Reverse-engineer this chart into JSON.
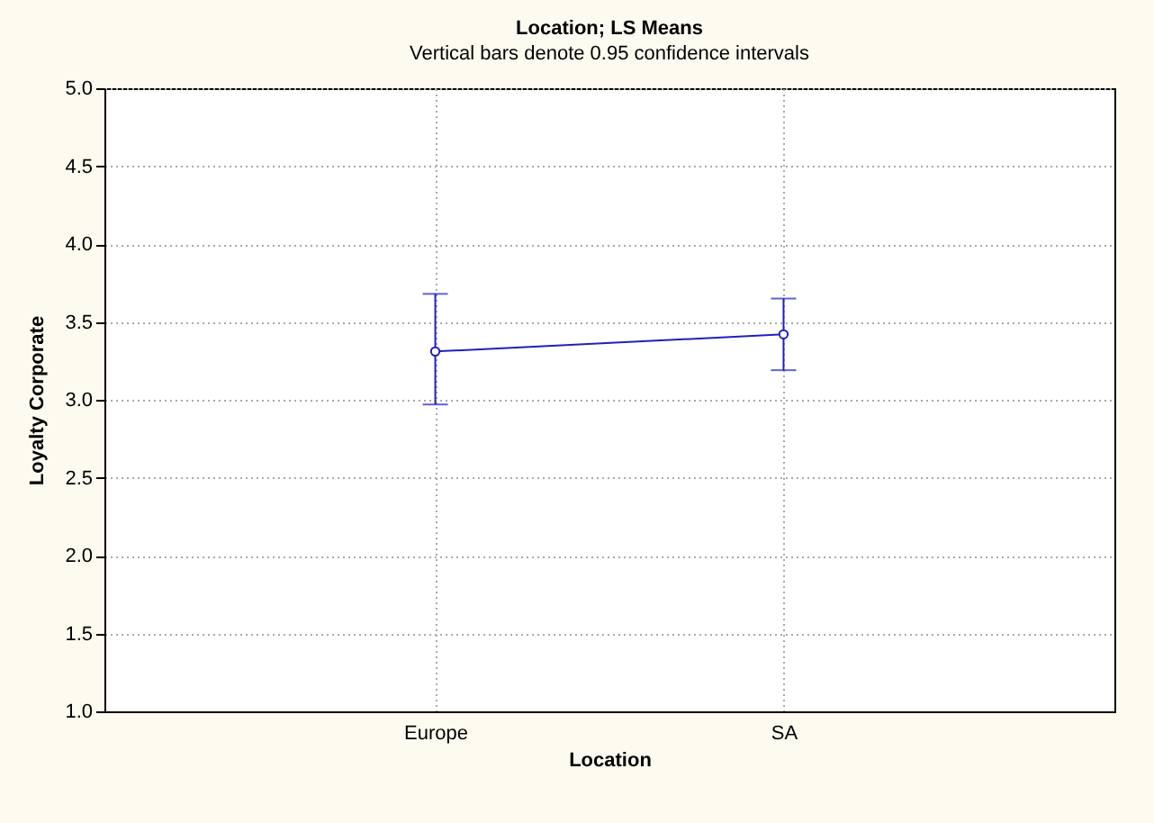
{
  "chart_data": {
    "type": "line",
    "title": "Location; LS Means",
    "subtitle": "Vertical bars denote 0.95 confidence intervals",
    "xlabel": "Location",
    "ylabel": "Loyalty Corporate",
    "categories": [
      "Europe",
      "SA"
    ],
    "series": [
      {
        "color": "#2020c0",
        "values": [
          3.31,
          3.42
        ],
        "errors": [
          [
            2.97,
            3.68
          ],
          [
            3.19,
            3.65
          ]
        ]
      }
    ],
    "ylim": [
      1.0,
      5.0
    ],
    "yticks": [
      {
        "value": 1,
        "label": "1.0"
      },
      {
        "value": 1.5,
        "label": "1.5"
      },
      {
        "value": 2,
        "label": "2.0"
      },
      {
        "value": 2.5,
        "label": "2.5"
      },
      {
        "value": 3,
        "label": "3.0"
      },
      {
        "value": 3.5,
        "label": "3.5"
      },
      {
        "value": 4,
        "label": "4.0"
      },
      {
        "value": 4.5,
        "label": "4.5"
      },
      {
        "value": 5,
        "label": "5.0"
      }
    ],
    "grid": true,
    "marker": "circle",
    "line_style": "solid"
  }
}
